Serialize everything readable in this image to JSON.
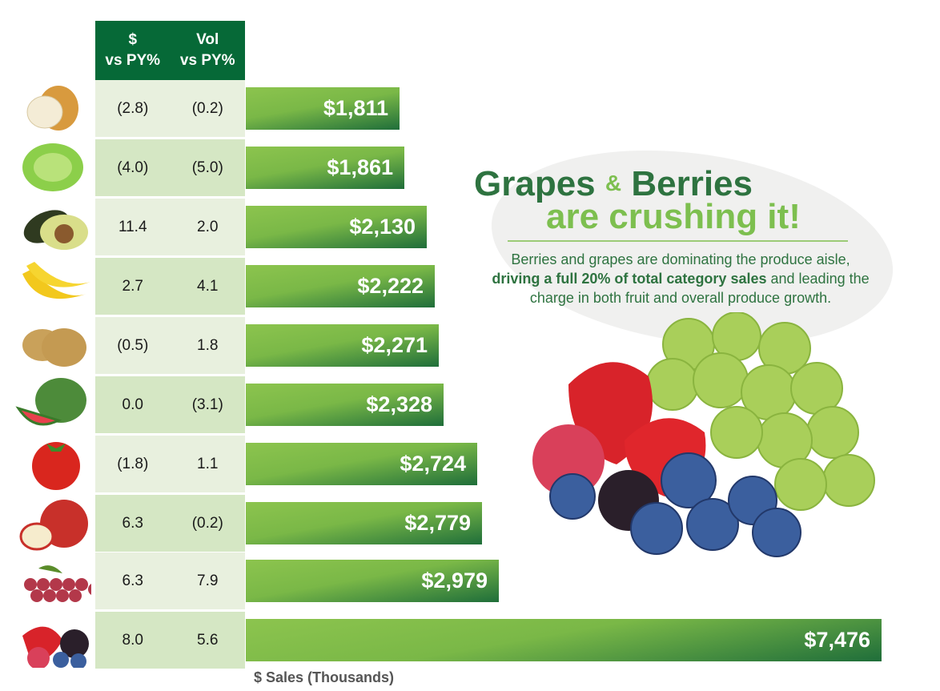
{
  "chart_data": {
    "type": "bar",
    "orientation": "horizontal",
    "xlabel": "$ Sales (Thousands)",
    "categories": [
      "onion",
      "lettuce",
      "avocado",
      "banana",
      "potato",
      "watermelon",
      "tomato",
      "apple",
      "grapes",
      "berries"
    ],
    "values": [
      1811,
      1861,
      2130,
      2222,
      2271,
      2328,
      2724,
      2779,
      2979,
      7476
    ],
    "value_labels": [
      "$1,811",
      "$1,861",
      "$2,130",
      "$2,222",
      "$2,271",
      "$2,328",
      "$2,724",
      "$2,779",
      "$2,979",
      "$7,476"
    ],
    "table": {
      "headers": [
        "$\nvs PY%",
        "Vol\nvs PY%"
      ],
      "dollar_vs_py": [
        "(2.8)",
        "(4.0)",
        "11.4",
        "2.7",
        "(0.5)",
        "0.0",
        "(1.8)",
        "6.3",
        "6.3",
        "8.0"
      ],
      "vol_vs_py": [
        "(0.2)",
        "(5.0)",
        "2.0",
        "4.1",
        "1.8",
        "(3.1)",
        "1.1",
        "(0.2)",
        "7.9",
        "5.6"
      ]
    },
    "colors": {
      "header": "#066937",
      "bar_light": "#8cc44e",
      "bar_dark": "#1f6e3a",
      "row_a": "#e8f0de",
      "row_b": "#d5e7c4"
    }
  },
  "callout": {
    "title_a": "Grapes",
    "amp": "&",
    "title_b": "Berries",
    "title_line2": "are crushing it!",
    "body_1": "Berries and grapes are dominating the produce aisle,",
    "body_bold": "driving a full 20% of total category sales",
    "body_2": " and leading the charge in both fruit and overall produce growth."
  }
}
